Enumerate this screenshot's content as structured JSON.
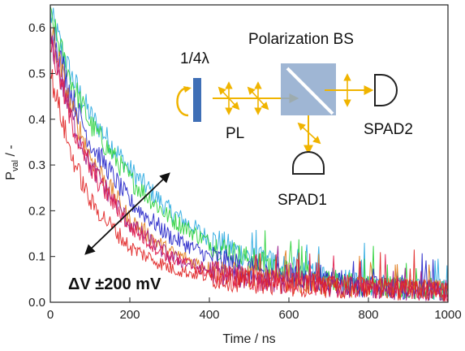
{
  "chart_data": {
    "type": "line",
    "title": "",
    "xlabel": "Time / ns",
    "ylabel_main": "P",
    "ylabel_sub": "val",
    "ylabel_tail": " / -",
    "xlim": [
      0,
      1000
    ],
    "ylim": [
      0.0,
      0.65
    ],
    "xticks": [
      "0",
      "200",
      "400",
      "600",
      "800",
      "1000"
    ],
    "yticks": [
      "0.0",
      "0.1",
      "0.2",
      "0.3",
      "0.4",
      "0.5",
      "0.6"
    ],
    "grid": false,
    "legend": "none",
    "series": [
      {
        "color": "#29a9e0",
        "values": [
          [
            0,
            0.63
          ],
          [
            50,
            0.5
          ],
          [
            100,
            0.41
          ],
          [
            200,
            0.29
          ],
          [
            300,
            0.2
          ],
          [
            400,
            0.14
          ],
          [
            500,
            0.1
          ],
          [
            600,
            0.075
          ],
          [
            700,
            0.055
          ],
          [
            800,
            0.04
          ],
          [
            900,
            0.032
          ],
          [
            1000,
            0.027
          ]
        ]
      },
      {
        "color": "#2bd23a",
        "values": [
          [
            0,
            0.62
          ],
          [
            50,
            0.49
          ],
          [
            100,
            0.39
          ],
          [
            200,
            0.27
          ],
          [
            300,
            0.185
          ],
          [
            400,
            0.13
          ],
          [
            500,
            0.093
          ],
          [
            600,
            0.068
          ],
          [
            700,
            0.05
          ],
          [
            800,
            0.038
          ],
          [
            900,
            0.031
          ],
          [
            1000,
            0.026
          ]
        ]
      },
      {
        "color": "#2222c8",
        "values": [
          [
            0,
            0.61
          ],
          [
            50,
            0.46
          ],
          [
            100,
            0.35
          ],
          [
            200,
            0.22
          ],
          [
            300,
            0.145
          ],
          [
            400,
            0.1
          ],
          [
            500,
            0.072
          ],
          [
            600,
            0.055
          ],
          [
            700,
            0.042
          ],
          [
            800,
            0.034
          ],
          [
            900,
            0.029
          ],
          [
            1000,
            0.025
          ]
        ]
      },
      {
        "color": "#e07a1a",
        "values": [
          [
            0,
            0.6
          ],
          [
            50,
            0.43
          ],
          [
            100,
            0.32
          ],
          [
            200,
            0.18
          ],
          [
            300,
            0.11
          ],
          [
            400,
            0.075
          ],
          [
            500,
            0.055
          ],
          [
            600,
            0.044
          ],
          [
            700,
            0.036
          ],
          [
            800,
            0.031
          ],
          [
            900,
            0.028
          ],
          [
            1000,
            0.025
          ]
        ]
      },
      {
        "color": "#9a1a8a",
        "values": [
          [
            0,
            0.58
          ],
          [
            50,
            0.41
          ],
          [
            100,
            0.3
          ],
          [
            200,
            0.17
          ],
          [
            300,
            0.1
          ],
          [
            400,
            0.068
          ],
          [
            500,
            0.052
          ],
          [
            600,
            0.042
          ],
          [
            700,
            0.035
          ],
          [
            800,
            0.03
          ],
          [
            900,
            0.027
          ],
          [
            1000,
            0.025
          ]
        ]
      },
      {
        "color": "#e01a4a",
        "values": [
          [
            0,
            0.57
          ],
          [
            50,
            0.4
          ],
          [
            100,
            0.29
          ],
          [
            200,
            0.165
          ],
          [
            300,
            0.098
          ],
          [
            400,
            0.066
          ],
          [
            500,
            0.05
          ],
          [
            600,
            0.041
          ],
          [
            700,
            0.035
          ],
          [
            800,
            0.03
          ],
          [
            900,
            0.027
          ],
          [
            1000,
            0.025
          ]
        ]
      },
      {
        "color": "#e02020",
        "values": [
          [
            0,
            0.5
          ],
          [
            50,
            0.33
          ],
          [
            100,
            0.22
          ],
          [
            200,
            0.12
          ],
          [
            300,
            0.075
          ],
          [
            400,
            0.055
          ],
          [
            500,
            0.044
          ],
          [
            600,
            0.038
          ],
          [
            700,
            0.033
          ],
          [
            800,
            0.03
          ],
          [
            900,
            0.027
          ],
          [
            1000,
            0.025
          ]
        ]
      }
    ],
    "annotations": {
      "delta": "ΔV ±200 mV",
      "waveplate": "1/4λ",
      "pbs": "Polarization BS",
      "pl": "PL",
      "spad1": "SPAD1",
      "spad2": "SPAD2"
    }
  }
}
